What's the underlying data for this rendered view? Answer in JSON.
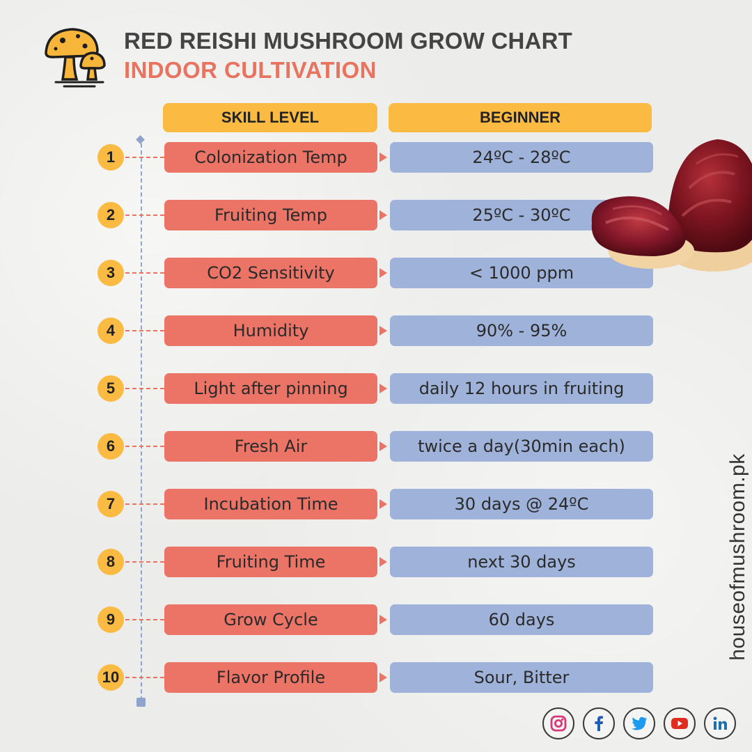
{
  "header": {
    "title": "RED REISHI MUSHROOM GROW CHART",
    "subtitle": "INDOOR CULTIVATION"
  },
  "table": {
    "col_left": "SKILL LEVEL",
    "col_right": "BEGINNER",
    "rows": [
      {
        "num": "1",
        "param": "Colonization Temp",
        "value": "24ºC - 28ºC"
      },
      {
        "num": "2",
        "param": "Fruiting Temp",
        "value": "25ºC - 30ºC"
      },
      {
        "num": "3",
        "param": "CO2 Sensitivity",
        "value": "< 1000 ppm"
      },
      {
        "num": "4",
        "param": "Humidity",
        "value": "90% - 95%"
      },
      {
        "num": "5",
        "param": "Light after pinning",
        "value": "daily 12 hours in fruiting"
      },
      {
        "num": "6",
        "param": "Fresh Air",
        "value": "twice a day(30min each)"
      },
      {
        "num": "7",
        "param": "Incubation Time",
        "value": "30 days @ 24ºC"
      },
      {
        "num": "8",
        "param": "Fruiting Time",
        "value": "next 30 days"
      },
      {
        "num": "9",
        "param": "Grow Cycle",
        "value": "60 days"
      },
      {
        "num": "10",
        "param": "Flavor Profile",
        "value": "Sour, Bitter"
      }
    ]
  },
  "website": "houseofmushroom.pk",
  "social": {
    "instagram_color": "#d8387a",
    "facebook_color": "#1f5fb8",
    "twitter_color": "#1d9bf0",
    "youtube_color": "#e02b20",
    "linkedin_color": "#1d6fb0"
  },
  "colors": {
    "accent_yellow": "#fbbb42",
    "param_red": "#eb7466",
    "value_blue": "#9fb3da",
    "subtitle_red": "#e8735f"
  }
}
